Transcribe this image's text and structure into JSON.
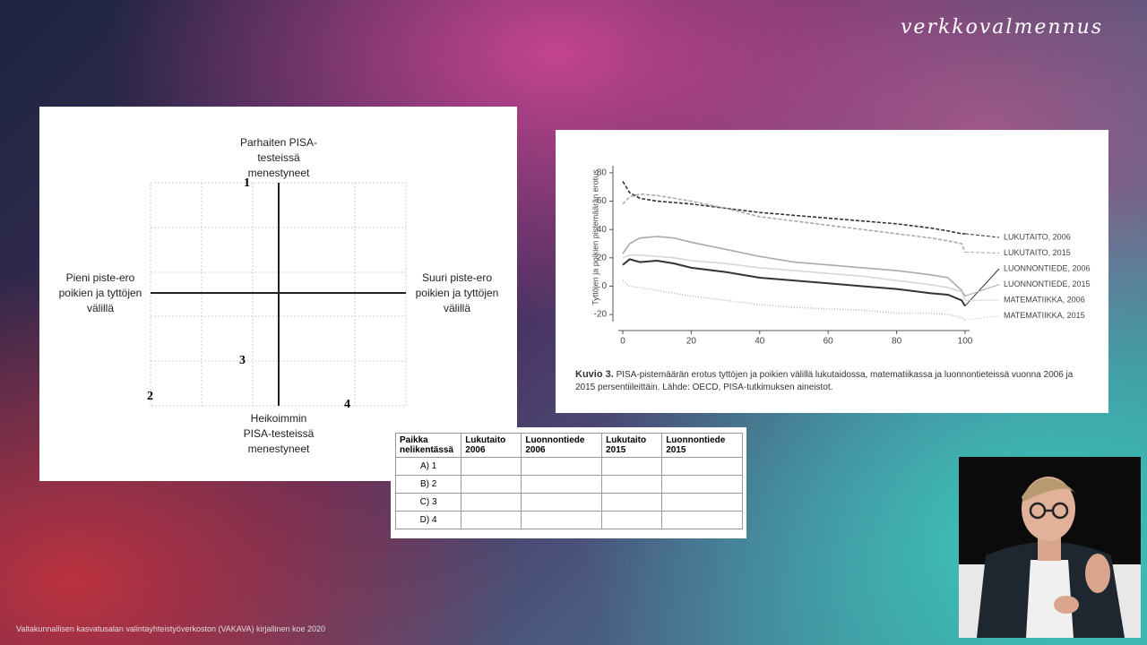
{
  "brand": "verkkovalmennus",
  "footer": "Valtakunnallisen kasvatusalan valintayhteistyöverkoston (VAKAVA) kirjallinen koe 2020",
  "quadrant": {
    "top": "Parhaiten PISA-testeissä menestyneet",
    "left": "Pieni piste-ero poikien ja tyttöjen välillä",
    "right": "Suuri piste-ero poikien ja tyttöjen välillä",
    "bottom": "Heikoimmin PISA-testeissä menestyneet",
    "numbers": [
      "1",
      "2",
      "3",
      "4"
    ]
  },
  "chart_data": {
    "type": "line",
    "y_label": "Tyttöjen ja poikien pistemäärän erotus",
    "caption_label": "Kuvio 3.",
    "caption_text": "PISA-pistemäärän erotus tyttöjen ja poikien välillä lukutaidossa, matematiikassa ja luonnontieteissä vuonna 2006 ja 2015 persentiileittäin. Lähde: OECD, PISA-tutkimuksen aineistot.",
    "x": [
      0,
      2,
      5,
      10,
      15,
      20,
      30,
      40,
      50,
      60,
      70,
      80,
      90,
      95,
      99,
      100
    ],
    "xlim": [
      0,
      100
    ],
    "xticks": [
      0,
      20,
      40,
      60,
      80,
      100
    ],
    "ylim": [
      -25,
      85
    ],
    "yticks": [
      -20,
      0,
      20,
      40,
      60,
      80
    ],
    "series": [
      {
        "name": "LUKUTAITO, 2006",
        "color": "#333333",
        "style": "dashed",
        "values": [
          74,
          66,
          62,
          60,
          59,
          58,
          55,
          52,
          50,
          48,
          46,
          44,
          41,
          39,
          37,
          37
        ]
      },
      {
        "name": "LUKUTAITO, 2015",
        "color": "#aaaaaa",
        "style": "dashed",
        "values": [
          58,
          63,
          65,
          64,
          62,
          60,
          55,
          49,
          46,
          43,
          40,
          37,
          34,
          32,
          30,
          24
        ]
      },
      {
        "name": "LUONNONTIEDE, 2006",
        "color": "#333333",
        "style": "solid",
        "values": [
          15,
          19,
          17,
          18,
          16,
          13,
          10,
          6,
          4,
          2,
          0,
          -2,
          -5,
          -6,
          -10,
          -14
        ]
      },
      {
        "name": "LUONNONTIEDE, 2015",
        "color": "#aaaaaa",
        "style": "solid",
        "values": [
          23,
          30,
          34,
          35,
          34,
          31,
          26,
          21,
          17,
          15,
          13,
          11,
          8,
          6,
          -3,
          -7
        ]
      },
      {
        "name": "MATEMATIIKKA, 2006",
        "color": "#d6d6d6",
        "style": "solid",
        "values": [
          20,
          22,
          22,
          21,
          20,
          18,
          16,
          13,
          11,
          9,
          7,
          4,
          1,
          -1,
          -4,
          -10
        ]
      },
      {
        "name": "MATEMATIIKKA, 2015",
        "color": "#bbbbbb",
        "style": "dotted",
        "values": [
          4,
          0,
          -1,
          -3,
          -5,
          -7,
          -10,
          -13,
          -15,
          -16,
          -17,
          -19,
          -19,
          -20,
          -22,
          -24
        ]
      }
    ]
  },
  "table": {
    "header": [
      "Paikka nelikentässä",
      "Lukutaito 2006",
      "Luonnontiede 2006",
      "Lukutaito 2015",
      "Luonnontiede 2015"
    ],
    "rows": [
      "A) 1",
      "B) 2",
      "C) 3",
      "D) 4"
    ]
  }
}
